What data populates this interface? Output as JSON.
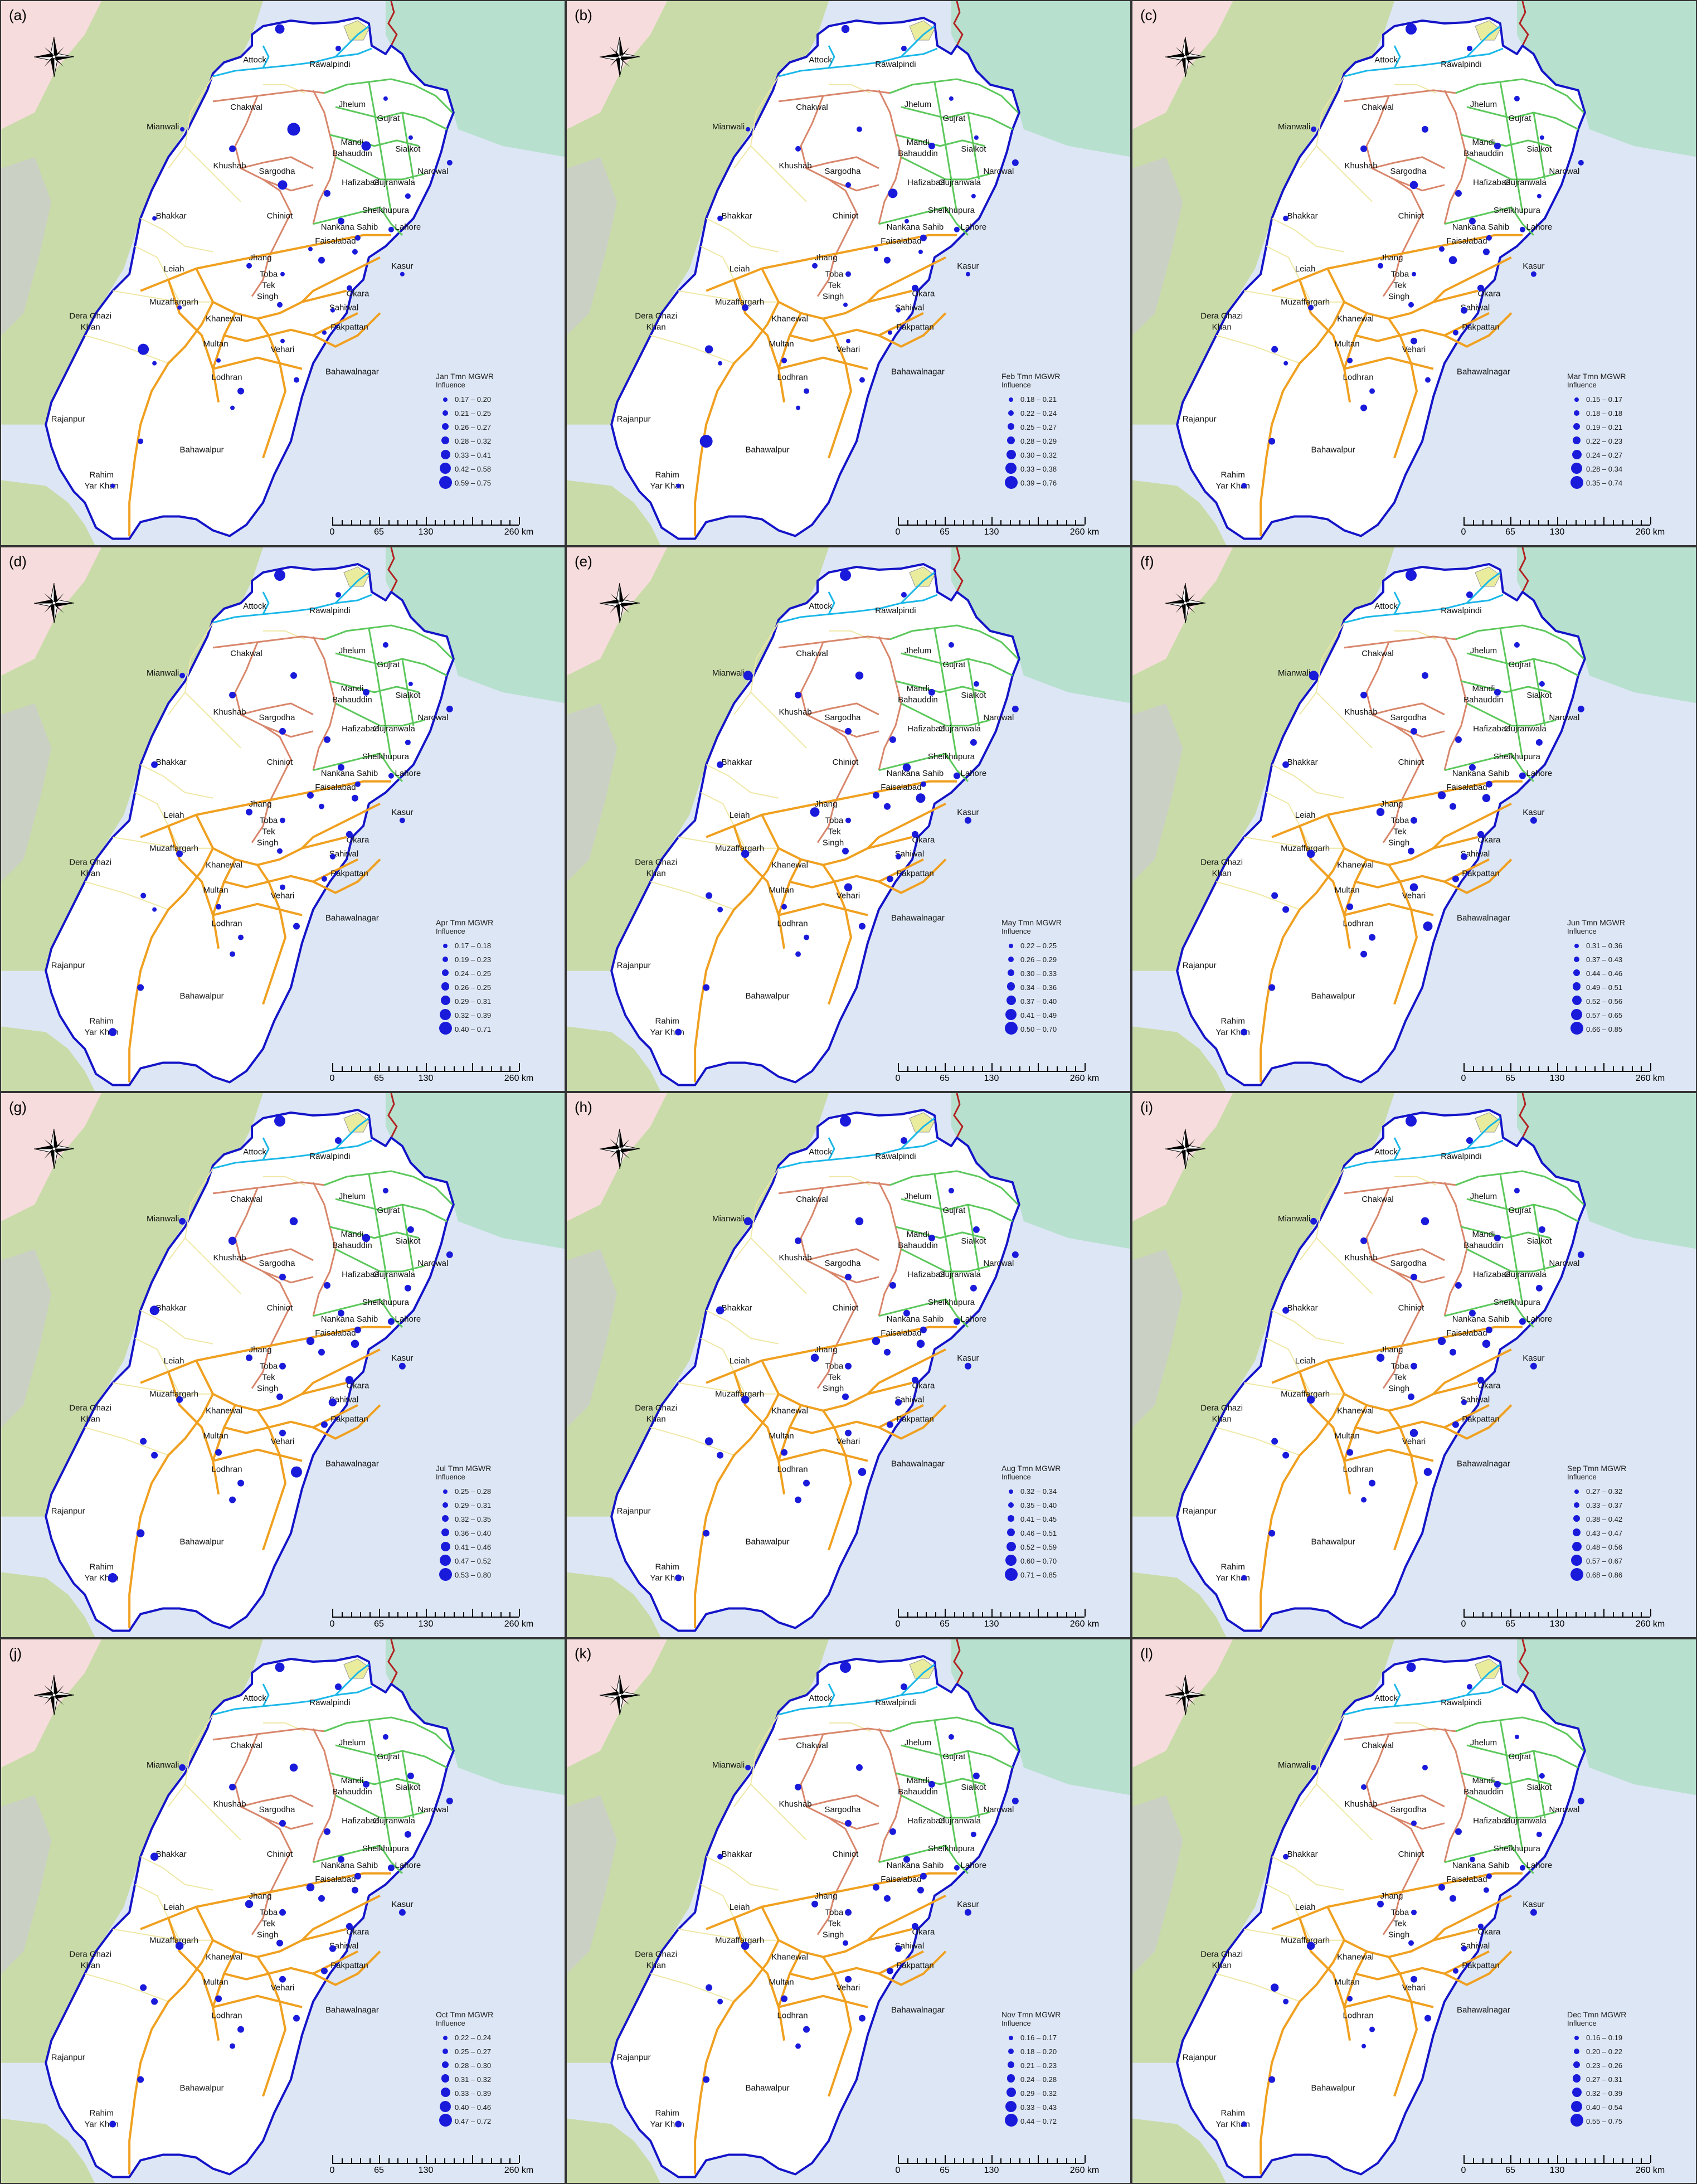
{
  "colors": {
    "afghanistan_bg": "#c9dba8",
    "india_bg": "#b7e0cf",
    "sindh_bg": "#dde6f4",
    "pink_top": "#f6dcdc",
    "kpk_grey": "#cbd0c4",
    "punjab_fill": "#ffffff",
    "boundary": "#1414c8",
    "point": "#1a1adb",
    "div_rawalpindi": "#1ab7e8",
    "div_sargodha": "#d8866b",
    "div_gujranwala_lahore": "#5cc85c",
    "div_south": "#f0a020",
    "div_faint": "#efe8a6",
    "intl_border": "#b22222",
    "lake": "#e9ec9c"
  },
  "scale": {
    "ticks": [
      "0",
      "65",
      "130",
      "260 km"
    ]
  },
  "cities": [
    {
      "label": "Attock"
    },
    {
      "label": "Rawalpindi"
    },
    {
      "label": "Chakwal"
    },
    {
      "label": "Jhelum"
    },
    {
      "label": "Mianwali"
    },
    {
      "label": "Gujrat"
    },
    {
      "label": "Mandi"
    },
    {
      "label": "Bahauddin"
    },
    {
      "label": "Sialkot"
    },
    {
      "label": "Khushab"
    },
    {
      "label": "Narowal"
    },
    {
      "label": "Sargodha"
    },
    {
      "label": "Gujranwala"
    },
    {
      "label": "Hafizabad"
    },
    {
      "label": "Chiniot"
    },
    {
      "label": "Bhakkar"
    },
    {
      "label": "Sheikhupura"
    },
    {
      "label": "Nankana Sahib"
    },
    {
      "label": "Lahore"
    },
    {
      "label": "Faisalabad"
    },
    {
      "label": "Jhang"
    },
    {
      "label": "Kasur"
    },
    {
      "label": "Leiah"
    },
    {
      "label": "Toba"
    },
    {
      "label": "Tek"
    },
    {
      "label": "Singh"
    },
    {
      "label": "Okara"
    },
    {
      "label": "Muzaffargarh"
    },
    {
      "label": "Sahiwal"
    },
    {
      "label": "Dera Ghazi"
    },
    {
      "label": "Khan"
    },
    {
      "label": "Khanewal"
    },
    {
      "label": "Pakpattan"
    },
    {
      "label": "Multan"
    },
    {
      "label": "Vehari"
    },
    {
      "label": "Lodhran"
    },
    {
      "label": "Bahawalnagar"
    },
    {
      "label": "Rajanpur"
    },
    {
      "label": "Bahawalpur"
    },
    {
      "label": "Rahim"
    },
    {
      "label": "Yar Khan"
    }
  ],
  "panels": [
    {
      "label": "(a)",
      "title": "Jan Tmn MGWR",
      "subtitle": "Influence",
      "classes": [
        "0.17 – 0.20",
        "0.21 – 0.25",
        "0.26 – 0.27",
        "0.28 – 0.32",
        "0.33 – 0.41",
        "0.42 – 0.58",
        "0.59 – 0.75"
      ],
      "stations": [
        5,
        2,
        7,
        1,
        1,
        5,
        1,
        2,
        3,
        5,
        2,
        1,
        3,
        3,
        2,
        1,
        3,
        2,
        2,
        2,
        1,
        2,
        1,
        2,
        1,
        1,
        1,
        1,
        1,
        6,
        1,
        2,
        3,
        1,
        2,
        1
      ]
    },
    {
      "label": "(b)",
      "title": "Feb Tmn MGWR",
      "subtitle": "Influence",
      "classes": [
        "0.18 – 0.21",
        "0.22 – 0.24",
        "0.25 – 0.27",
        "0.28 – 0.29",
        "0.30 – 0.32",
        "0.33 – 0.38",
        "0.39 – 0.76"
      ],
      "stations": [
        4,
        2,
        2,
        1,
        1,
        3,
        1,
        3,
        2,
        2,
        1,
        1,
        1,
        5,
        1,
        2,
        3,
        3,
        2,
        2,
        2,
        3,
        1,
        1,
        3,
        1,
        1,
        1,
        2,
        4,
        1,
        2,
        2,
        1,
        7,
        1
      ]
    },
    {
      "label": "(c)",
      "title": "Mar Tmn MGWR",
      "subtitle": "Influence",
      "classes": [
        "0.15 – 0.17",
        "0.18 – 0.18",
        "0.19 – 0.21",
        "0.22 – 0.23",
        "0.24 – 0.27",
        "0.28 – 0.34",
        "0.35 – 0.74"
      ],
      "stations": [
        6,
        2,
        3,
        2,
        2,
        3,
        1,
        2,
        3,
        4,
        1,
        2,
        3,
        3,
        3,
        2,
        4,
        2,
        2,
        2,
        1,
        3,
        2,
        2,
        2,
        3,
        2,
        3,
        2,
        3,
        1,
        2,
        2,
        3,
        3,
        2
      ]
    },
    {
      "label": "(d)",
      "title": "Apr Tmn MGWR",
      "subtitle": "Influence",
      "classes": [
        "0.17 – 0.18",
        "0.19 – 0.23",
        "0.24 – 0.25",
        "0.26 – 0.25",
        "0.29 – 0.31",
        "0.32 – 0.39",
        "0.40 – 0.71"
      ],
      "stations": [
        6,
        2,
        3,
        2,
        2,
        3,
        1,
        3,
        3,
        3,
        2,
        3,
        3,
        3,
        3,
        3,
        2,
        2,
        2,
        3,
        2,
        3,
        2,
        2,
        3,
        2,
        2,
        2,
        2,
        2,
        1,
        3,
        2,
        2,
        3,
        4
      ]
    },
    {
      "label": "(e)",
      "title": "May Tmn MGWR",
      "subtitle": "Influence",
      "classes": [
        "0.22 – 0.25",
        "0.26 – 0.29",
        "0.30 – 0.33",
        "0.34 – 0.36",
        "0.37 – 0.40",
        "0.41 – 0.49",
        "0.50 – 0.70"
      ],
      "stations": [
        6,
        2,
        4,
        2,
        5,
        3,
        2,
        3,
        3,
        3,
        3,
        3,
        4,
        3,
        5,
        3,
        3,
        2,
        3,
        5,
        2,
        3,
        3,
        3,
        4,
        2,
        3,
        4,
        2,
        3,
        2,
        3,
        2,
        2,
        3,
        3
      ]
    },
    {
      "label": "(f)",
      "title": "Jun Tmn MGWR",
      "subtitle": "Influence",
      "classes": [
        "0.31 – 0.36",
        "0.37 – 0.43",
        "0.44 – 0.46",
        "0.49 – 0.51",
        "0.52 – 0.56",
        "0.57 – 0.65",
        "0.66 – 0.85"
      ],
      "stations": [
        6,
        3,
        3,
        2,
        5,
        3,
        2,
        3,
        3,
        3,
        3,
        4,
        3,
        3,
        4,
        3,
        3,
        3,
        3,
        4,
        3,
        3,
        3,
        3,
        4,
        3,
        3,
        4,
        3,
        3,
        3,
        5,
        3,
        3,
        3,
        3
      ]
    },
    {
      "label": "(g)",
      "title": "Jul Tmn MGWR",
      "subtitle": "Influence",
      "classes": [
        "0.25 – 0.28",
        "0.29 – 0.31",
        "0.32 – 0.35",
        "0.36 – 0.40",
        "0.41 – 0.46",
        "0.47 – 0.52",
        "0.53 – 0.80"
      ],
      "stations": [
        6,
        3,
        4,
        2,
        3,
        4,
        3,
        3,
        4,
        3,
        3,
        4,
        3,
        3,
        4,
        5,
        3,
        3,
        3,
        3,
        3,
        4,
        3,
        3,
        3,
        4,
        3,
        3,
        3,
        3,
        3,
        6,
        3,
        3,
        4,
        5
      ]
    },
    {
      "label": "(h)",
      "title": "Aug Tmn MGWR",
      "subtitle": "Influence",
      "classes": [
        "0.32 – 0.34",
        "0.35 – 0.40",
        "0.41 – 0.45",
        "0.46 – 0.51",
        "0.52 – 0.59",
        "0.60 – 0.70",
        "0.71 – 0.85"
      ],
      "stations": [
        6,
        3,
        4,
        2,
        4,
        3,
        3,
        3,
        3,
        3,
        3,
        4,
        3,
        3,
        4,
        4,
        3,
        3,
        3,
        4,
        3,
        3,
        3,
        3,
        4,
        3,
        3,
        3,
        3,
        4,
        3,
        4,
        3,
        3,
        3,
        3
      ]
    },
    {
      "label": "(i)",
      "title": "Sep Tmn MGWR",
      "subtitle": "Influence",
      "classes": [
        "0.27 – 0.32",
        "0.33 – 0.37",
        "0.38 – 0.42",
        "0.43 – 0.47",
        "0.48 – 0.56",
        "0.57 – 0.67",
        "0.68 – 0.86"
      ],
      "stations": [
        6,
        3,
        4,
        2,
        3,
        3,
        3,
        3,
        3,
        3,
        3,
        4,
        3,
        3,
        4,
        3,
        3,
        3,
        3,
        4,
        3,
        3,
        3,
        3,
        4,
        2,
        3,
        4,
        3,
        3,
        3,
        4,
        3,
        2,
        3,
        2
      ]
    },
    {
      "label": "(j)",
      "title": "Oct Tmn MGWR",
      "subtitle": "Influence",
      "classes": [
        "0.22 – 0.24",
        "0.25 – 0.27",
        "0.28 – 0.30",
        "0.31 – 0.32",
        "0.33 – 0.39",
        "0.40 – 0.46",
        "0.47 – 0.72"
      ],
      "stations": [
        5,
        3,
        4,
        2,
        3,
        3,
        3,
        3,
        3,
        3,
        3,
        4,
        3,
        3,
        3,
        4,
        3,
        3,
        3,
        4,
        3,
        3,
        3,
        3,
        4,
        3,
        3,
        3,
        3,
        3,
        3,
        3,
        3,
        2,
        3,
        3
      ]
    },
    {
      "label": "(k)",
      "title": "Nov Tmn MGWR",
      "subtitle": "Influence",
      "classes": [
        "0.16 – 0.17",
        "0.18 – 0.20",
        "0.21 – 0.23",
        "0.24 – 0.28",
        "0.29 – 0.32",
        "0.33 – 0.43",
        "0.44 – 0.72"
      ],
      "stations": [
        6,
        3,
        3,
        2,
        2,
        3,
        3,
        3,
        3,
        3,
        2,
        3,
        3,
        3,
        3,
        2,
        3,
        3,
        2,
        3,
        3,
        3,
        3,
        2,
        4,
        3,
        3,
        3,
        3,
        3,
        2,
        3,
        3,
        2,
        3,
        3
      ]
    },
    {
      "label": "(l)",
      "title": "Dec Tmn MGWR",
      "subtitle": "Influence",
      "classes": [
        "0.16 – 0.19",
        "0.20 – 0.22",
        "0.23 – 0.26",
        "0.27 – 0.31",
        "0.32 – 0.39",
        "0.40 – 0.54",
        "0.55 – 0.75"
      ],
      "stations": [
        5,
        2,
        2,
        1,
        2,
        3,
        2,
        3,
        2,
        2,
        2,
        3,
        2,
        3,
        2,
        2,
        3,
        2,
        2,
        3,
        2,
        2,
        3,
        2,
        4,
        2,
        2,
        3,
        2,
        4,
        2,
        3,
        2,
        1,
        3,
        2
      ]
    }
  ]
}
